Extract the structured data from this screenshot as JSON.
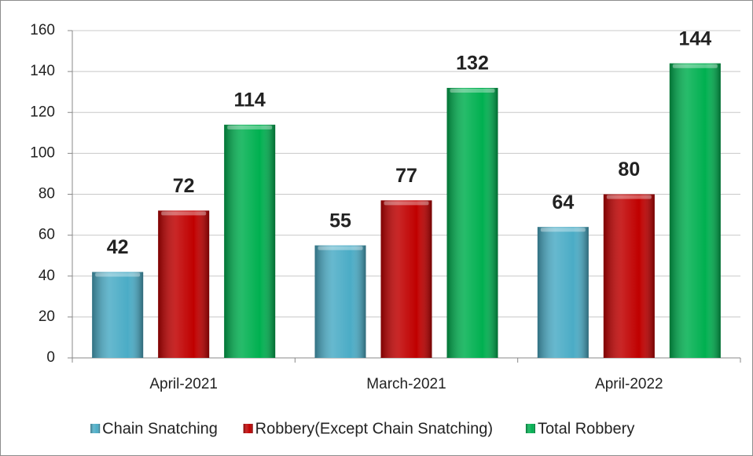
{
  "chart_data": {
    "type": "bar",
    "categories": [
      "April-2021",
      "March-2021",
      "April-2022"
    ],
    "series": [
      {
        "name": "Chain Snatching",
        "color": "#4bacc6",
        "values": [
          42,
          55,
          64
        ]
      },
      {
        "name": "Robbery(Except Chain Snatching)",
        "color": "#c00000",
        "values": [
          72,
          77,
          80
        ]
      },
      {
        "name": "Total Robbery",
        "color": "#00b050",
        "values": [
          114,
          132,
          144
        ]
      }
    ],
    "ylim": [
      0,
      160
    ],
    "yticks": [
      0,
      20,
      40,
      60,
      80,
      100,
      120,
      140,
      160
    ],
    "grid": true,
    "legend": "bottom"
  }
}
